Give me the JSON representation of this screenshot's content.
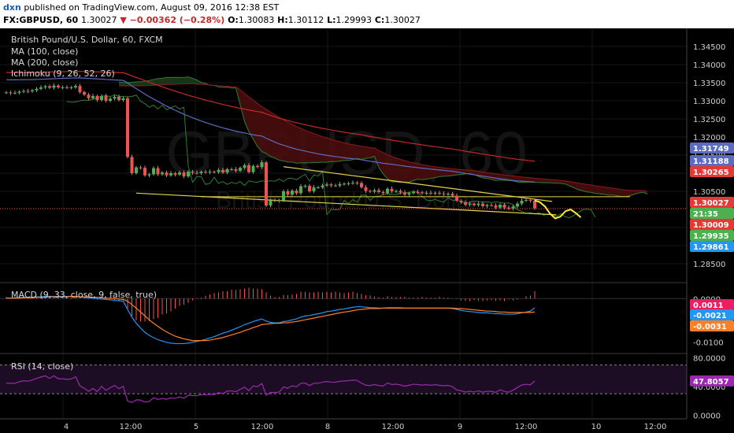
{
  "header": {
    "user": "dxn",
    "published": "published on TradingView.com, August 09, 2016 12:38 EST",
    "symbol": "FX:GBPUSD, 60",
    "price": "1.30027",
    "change": "▼ −0.00362 (−0.28%)",
    "o": "1.30083",
    "h": "1.30112",
    "l": "1.29993",
    "c": "1.30027"
  },
  "legend": {
    "title": "British Pound/U.S. Dollar, 60, FXCM",
    "ma100": "MA (100, close)",
    "ma200": "MA (200, close)",
    "ichimoku": "Ichimoku (9, 26, 52, 26)"
  },
  "watermark": {
    "big": "GBPUSD, 60",
    "small": "British Pound/U.S. Dollar"
  },
  "macd_title": "MACD (9, 33, close, 9, false, true)",
  "rsi_title": "RSI (14, close)",
  "colors": {
    "up": "#4caf50",
    "down": "#ef5350",
    "ma_blue": "#5c6bc0",
    "ma_red": "#c62828",
    "cloud_green": "#1b3a1b",
    "cloud_red": "#4a0d0d",
    "channel": "#e6d44a",
    "macd": "#2196f3",
    "signal": "#ff7f27",
    "rsi": "#9c27b0",
    "price_label": "#e53935"
  },
  "chart_data": [
    {
      "type": "candlestick",
      "title": "British Pound/U.S. Dollar, 60, FXCM",
      "ylim": [
        1.28,
        1.35
      ],
      "y_ticks": [
        "1.34500",
        "1.34000",
        "1.33500",
        "1.33000",
        "1.32500",
        "1.32000",
        "1.31500",
        "1.31000",
        "1.30500",
        "1.30000",
        "1.29500",
        "1.29000",
        "1.28500"
      ],
      "x_ticks": [
        "4",
        "12:00",
        "5",
        "12:00",
        "8",
        "12:00",
        "9",
        "12:00",
        "10",
        "12:00"
      ],
      "price_labels": [
        {
          "value": "1.31749",
          "color": "#5c6bc0"
        },
        {
          "value": "1.31188",
          "color": "#5c6bc0"
        },
        {
          "value": "1.30265",
          "color": "#e53935"
        },
        {
          "value": "1.30027",
          "color": "#e53935"
        },
        {
          "value": "21:35",
          "color": "#4caf50"
        },
        {
          "value": "1.30009",
          "color": "#e53935"
        },
        {
          "value": "1.29935",
          "color": "#4caf50"
        },
        {
          "value": "1.29861",
          "color": "#2196f3"
        }
      ],
      "close": [
        1.3323,
        1.3321,
        1.3322,
        1.3325,
        1.3327,
        1.3326,
        1.3329,
        1.3333,
        1.3337,
        1.334,
        1.3336,
        1.3342,
        1.3337,
        1.3337,
        1.3336,
        1.3337,
        1.3341,
        1.3324,
        1.3317,
        1.3307,
        1.3313,
        1.3302,
        1.3313,
        1.33,
        1.3306,
        1.3311,
        1.3302,
        1.3307,
        1.3145,
        1.31,
        1.3116,
        1.3115,
        1.3094,
        1.3097,
        1.3114,
        1.3097,
        1.3102,
        1.3094,
        1.31,
        1.3096,
        1.3102,
        1.3091,
        1.3104,
        1.3101,
        1.31,
        1.3104,
        1.3102,
        1.3104,
        1.3103,
        1.3109,
        1.3102,
        1.3111,
        1.3111,
        1.3107,
        1.3115,
        1.3122,
        1.3103,
        1.312,
        1.3117,
        1.313,
        1.3011,
        1.3025,
        1.3024,
        1.3025,
        1.305,
        1.3041,
        1.3052,
        1.3045,
        1.3064,
        1.3065,
        1.305,
        1.3061,
        1.3061,
        1.3066,
        1.3069,
        1.3066,
        1.3066,
        1.307,
        1.3071,
        1.3072,
        1.3074,
        1.3073,
        1.3061,
        1.3051,
        1.3049,
        1.3053,
        1.3048,
        1.3045,
        1.3057,
        1.305,
        1.3051,
        1.3047,
        1.3041,
        1.3045,
        1.3048,
        1.3047,
        1.3045,
        1.3046,
        1.3044,
        1.3046,
        1.3044,
        1.3042,
        1.3043,
        1.3038,
        1.3024,
        1.302,
        1.3013,
        1.3016,
        1.3012,
        1.3016,
        1.3009,
        1.3012,
        1.3011,
        1.3005,
        1.3013,
        1.3005,
        1.3002,
        1.3008,
        1.3016,
        1.3024,
        1.3026,
        1.3024,
        1.3003
      ],
      "forecast": [
        1.3025,
        1.302,
        1.3008,
        1.2988,
        1.2975,
        1.298,
        1.2995,
        1.3,
        1.299,
        1.2978
      ]
    },
    {
      "type": "bar",
      "title": "MACD (9, 33, close, 9, false, true)",
      "ylim": [
        -0.0125,
        0.0035
      ],
      "y_ticks": [
        "0.0000",
        "-0.0050",
        "-0.0100"
      ],
      "value_labels": [
        {
          "value": "0.0011",
          "color": "#e91e63"
        },
        {
          "value": "-0.0021",
          "color": "#2196f3"
        },
        {
          "value": "-0.0031",
          "color": "#ff7f27"
        }
      ],
      "series": [
        {
          "name": "MACD",
          "values": [
            0.0001,
            0.0001,
            0.0002,
            0.0002,
            0.0003,
            0.0003,
            0.0003,
            0.0004,
            0.0004,
            0.0005,
            0.0005,
            0.0005,
            0.0005,
            0.0005,
            0.0005,
            0.0005,
            0.0004,
            0.0004,
            0.0003,
            0.0002,
            0.0001,
            0.0,
            -0.0001,
            -0.0002,
            -0.0003,
            -0.0004,
            -0.0005,
            -0.0006,
            -0.0025,
            -0.0043,
            -0.0057,
            -0.0068,
            -0.0078,
            -0.0085,
            -0.009,
            -0.0095,
            -0.0098,
            -0.0101,
            -0.0103,
            -0.0104,
            -0.0104,
            -0.0104,
            -0.0103,
            -0.0101,
            -0.0099,
            -0.0097,
            -0.0094,
            -0.0091,
            -0.0088,
            -0.0084,
            -0.008,
            -0.0077,
            -0.0073,
            -0.0069,
            -0.0065,
            -0.006,
            -0.0057,
            -0.0053,
            -0.005,
            -0.0047,
            -0.0052,
            -0.0055,
            -0.0056,
            -0.0056,
            -0.0053,
            -0.0052,
            -0.0049,
            -0.0047,
            -0.0043,
            -0.004,
            -0.0039,
            -0.0037,
            -0.0035,
            -0.0033,
            -0.003,
            -0.0029,
            -0.0027,
            -0.0025,
            -0.0024,
            -0.0022,
            -0.002,
            -0.0019,
            -0.0019,
            -0.002,
            -0.0021,
            -0.0021,
            -0.0022,
            -0.0022,
            -0.0021,
            -0.0021,
            -0.0021,
            -0.0021,
            -0.0022,
            -0.0022,
            -0.0022,
            -0.0022,
            -0.0022,
            -0.0022,
            -0.0022,
            -0.0022,
            -0.0022,
            -0.0022,
            -0.0022,
            -0.0023,
            -0.0025,
            -0.0027,
            -0.0029,
            -0.003,
            -0.0031,
            -0.0032,
            -0.0033,
            -0.0033,
            -0.0034,
            -0.0035,
            -0.0035,
            -0.0036,
            -0.0036,
            -0.0036,
            -0.0035,
            -0.0033,
            -0.0031,
            -0.0029,
            -0.0021
          ]
        },
        {
          "name": "Signal",
          "values": [
            0.0001,
            0.0001,
            0.0001,
            0.0001,
            0.0002,
            0.0002,
            0.0002,
            0.0003,
            0.0003,
            0.0003,
            0.0004,
            0.0004,
            0.0004,
            0.0004,
            0.0004,
            0.0005,
            0.0005,
            0.0004,
            0.0004,
            0.0004,
            0.0003,
            0.0003,
            0.0002,
            0.0001,
            0.0001,
            0.0,
            -0.0001,
            -0.0002,
            -0.0006,
            -0.0014,
            -0.0022,
            -0.0031,
            -0.004,
            -0.0049,
            -0.0057,
            -0.0064,
            -0.0071,
            -0.0077,
            -0.0082,
            -0.0087,
            -0.009,
            -0.0093,
            -0.0095,
            -0.0097,
            -0.0097,
            -0.0097,
            -0.0097,
            -0.0096,
            -0.0094,
            -0.0092,
            -0.009,
            -0.0087,
            -0.0084,
            -0.0081,
            -0.0078,
            -0.0074,
            -0.0071,
            -0.0067,
            -0.0064,
            -0.006,
            -0.0059,
            -0.0058,
            -0.0057,
            -0.0057,
            -0.0056,
            -0.0056,
            -0.0054,
            -0.0053,
            -0.0051,
            -0.0049,
            -0.0047,
            -0.0045,
            -0.0043,
            -0.0041,
            -0.0039,
            -0.0037,
            -0.0035,
            -0.0033,
            -0.0031,
            -0.003,
            -0.0028,
            -0.0026,
            -0.0025,
            -0.0024,
            -0.0023,
            -0.0023,
            -0.0023,
            -0.0022,
            -0.0022,
            -0.0022,
            -0.0022,
            -0.0022,
            -0.0022,
            -0.0022,
            -0.0022,
            -0.0022,
            -0.0022,
            -0.0022,
            -0.0022,
            -0.0022,
            -0.0022,
            -0.0022,
            -0.0022,
            -0.0022,
            -0.0023,
            -0.0023,
            -0.0024,
            -0.0025,
            -0.0026,
            -0.0027,
            -0.0028,
            -0.0029,
            -0.0029,
            -0.003,
            -0.0031,
            -0.0031,
            -0.0032,
            -0.0032,
            -0.0032,
            -0.0032,
            -0.0032,
            -0.0032,
            -0.0031
          ]
        }
      ]
    },
    {
      "type": "line",
      "title": "RSI (14, close)",
      "ylim": [
        -5,
        85
      ],
      "y_ticks": [
        "80.0000",
        "40.0000",
        "0.0000"
      ],
      "value_labels": [
        {
          "value": "47.8057",
          "color": "#9c27b0"
        }
      ],
      "series": [
        {
          "name": "RSI",
          "values": [
            44.9,
            44.5,
            44.7,
            46.7,
            48.1,
            47.5,
            49.1,
            51.4,
            53.3,
            54.9,
            51.4,
            55.0,
            50.8,
            50.8,
            49.9,
            50.7,
            53.7,
            40.9,
            37.6,
            33.3,
            37.4,
            33.0,
            40.4,
            34.6,
            38.5,
            41.6,
            37.1,
            40.3,
            19.9,
            17.8,
            21.3,
            21.2,
            18.5,
            19.2,
            24.4,
            22.0,
            23.4,
            22.3,
            24.3,
            23.6,
            25.6,
            23.6,
            27.9,
            27.4,
            27.3,
            28.8,
            28.4,
            29.1,
            28.9,
            31.5,
            30.1,
            33.9,
            33.9,
            32.9,
            36.2,
            39.2,
            34.2,
            40.8,
            39.9,
            44.3,
            28.1,
            31.8,
            31.7,
            32.2,
            39.5,
            37.7,
            41.1,
            39.5,
            44.6,
            44.9,
            41.3,
            44.6,
            44.6,
            46.1,
            47.0,
            46.1,
            46.1,
            47.4,
            47.8,
            48.2,
            48.9,
            48.6,
            44.7,
            41.9,
            41.4,
            42.8,
            41.5,
            40.7,
            44.9,
            42.9,
            43.3,
            42.2,
            40.4,
            41.9,
            43.2,
            42.8,
            42.1,
            42.6,
            41.8,
            42.6,
            41.8,
            41.1,
            41.6,
            39.8,
            35.2,
            34.1,
            32.3,
            33.5,
            32.4,
            34.0,
            32.2,
            33.5,
            33.3,
            31.9,
            35.6,
            33.1,
            32.2,
            35.0,
            38.7,
            42.2,
            43.1,
            42.5,
            47.8
          ]
        }
      ]
    }
  ]
}
